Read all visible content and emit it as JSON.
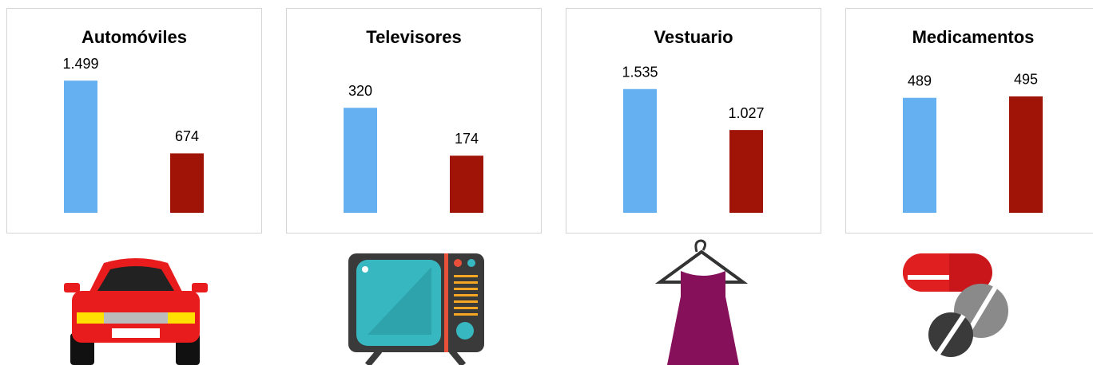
{
  "chart_data": [
    {
      "type": "bar",
      "title": "Automóviles",
      "values": [
        1499,
        674
      ],
      "value_labels": [
        "1.499",
        "674"
      ],
      "colors": [
        "#64b0f0",
        "#a01408"
      ],
      "ylim": [
        0,
        1600
      ]
    },
    {
      "type": "bar",
      "title": "Televisores",
      "values": [
        320,
        174
      ],
      "value_labels": [
        "320",
        "174"
      ],
      "colors": [
        "#64b0f0",
        "#a01408"
      ],
      "ylim": [
        0,
        430
      ]
    },
    {
      "type": "bar",
      "title": "Vestuario",
      "values": [
        1535,
        1027
      ],
      "value_labels": [
        "1.535",
        "1.027"
      ],
      "colors": [
        "#64b0f0",
        "#a01408"
      ],
      "ylim": [
        0,
        1750
      ]
    },
    {
      "type": "bar",
      "title": "Medicamentos",
      "values": [
        489,
        495
      ],
      "value_labels": [
        "489",
        "495"
      ],
      "colors": [
        "#64b0f0",
        "#a01408"
      ],
      "ylim": [
        0,
        600
      ]
    }
  ]
}
